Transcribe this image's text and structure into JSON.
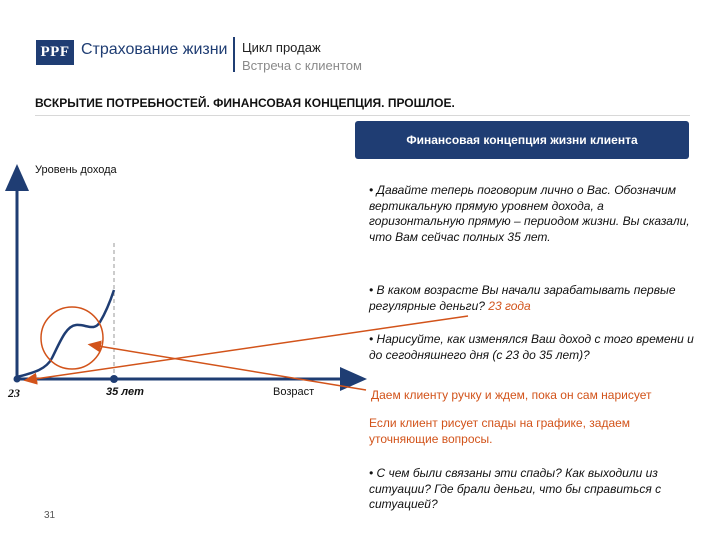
{
  "header": {
    "logo_mark": "PPF",
    "logo_text": "Страхование жизни",
    "title": "Цикл продаж",
    "subtitle": "Встреча с клиентом"
  },
  "page_heading": "ВСКРЫТИЕ ПОТРЕБНОСТЕЙ. ФИНАНСОВАЯ КОНЦЕПЦИЯ. ПРОШЛОЕ.",
  "banner": "Финансовая концепция жизни клиента",
  "diagram": {
    "y_axis_label": "Уровень дохода",
    "x_axis_label": "Возраст",
    "x_start_label": "23",
    "x_current_label": "35 лет"
  },
  "bullets": {
    "b1": "• Давайте теперь поговорим лично о Вас. Обозначим вертикальную прямую уровнем дохода, а горизонтальную прямую – периодом жизни. Вы сказали, что Вам сейчас полных 35 лет.",
    "b2_text": "• В каком возрасте Вы начали зарабатывать первые регулярные деньги?",
    "b2_answer": "23 года",
    "b3": "• Нарисуйте, как изменялся Ваш доход с того времени и до сегодняшнего дня (с 23 до 35 лет)?",
    "action_note": "Даем клиенту ручку и ждем, пока он сам нарисует",
    "dips_note": "Если клиент рисует спады на графике, задаем уточняющие вопросы.",
    "b4": "• С чем были связаны эти спады? Как выходили из ситуации? Где брали деньги, что бы справиться с ситуацией?"
  },
  "page_number": "31",
  "colors": {
    "brand_navy": "#1f3d73",
    "accent_orange": "#d2531a"
  }
}
